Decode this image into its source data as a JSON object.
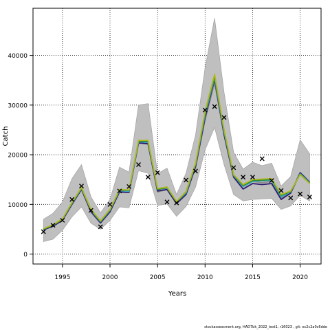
{
  "chart_data": {
    "type": "line",
    "title": "",
    "xlabel": "Years",
    "ylabel": "Catch",
    "xlim": [
      1991.9,
      2022.2
    ],
    "ylim": [
      -2000,
      49500
    ],
    "xticks": [
      1995,
      2000,
      2005,
      2010,
      2015,
      2020
    ],
    "yticks": [
      0,
      10000,
      20000,
      30000,
      40000
    ],
    "grid": true,
    "x": [
      1993,
      1994,
      1995,
      1996,
      1997,
      1998,
      1999,
      2000,
      2001,
      2002,
      2003,
      2004,
      2005,
      2006,
      2007,
      2008,
      2009,
      2010,
      2011,
      2012,
      2013,
      2014,
      2015,
      2016,
      2017,
      2018,
      2019,
      2020,
      2021
    ],
    "band": {
      "lower": [
        2500,
        3000,
        4800,
        7500,
        9500,
        6200,
        5000,
        6800,
        9500,
        9300,
        16800,
        16300,
        9800,
        10100,
        7600,
        9600,
        13500,
        21000,
        25500,
        18000,
        12000,
        10700,
        11000,
        11100,
        11200,
        9000,
        9700,
        11800,
        10700
      ],
      "upper": [
        7000,
        8200,
        10500,
        15200,
        18000,
        11500,
        8300,
        11000,
        17500,
        16500,
        30000,
        30300,
        16200,
        17300,
        12000,
        16300,
        24000,
        37500,
        47500,
        32500,
        20500,
        17100,
        18500,
        17800,
        18300,
        13700,
        15600,
        23000,
        20200
      ]
    },
    "observed": {
      "x": [
        1993,
        1994,
        1995,
        1996,
        1997,
        1998,
        1999,
        2000,
        2001,
        2002,
        2003,
        2004,
        2005,
        2006,
        2007,
        2008,
        2009,
        2010,
        2011,
        2012,
        2013,
        2014,
        2015,
        2016,
        2017,
        2018,
        2019,
        2020,
        2021
      ],
      "y": [
        4500,
        5800,
        6800,
        11000,
        13700,
        8800,
        5500,
        10000,
        12700,
        13600,
        18000,
        15500,
        16400,
        10500,
        10300,
        14900,
        16700,
        29000,
        29700,
        27500,
        17400,
        15500,
        15500,
        19200,
        14800,
        12800,
        11300,
        12100,
        11500
      ]
    },
    "series": [
      {
        "color": "#8c8c8c",
        "values": [
          4900,
          5700,
          7000,
          10200,
          13100,
          8500,
          6200,
          8500,
          12700,
          12500,
          22300,
          22300,
          12500,
          13000,
          10100,
          12000,
          17500,
          27000,
          34500,
          24000,
          15800,
          13800,
          14600,
          14400,
          14600,
          11300,
          12200,
          16200,
          14400
        ]
      },
      {
        "color": "#2d1b6e",
        "values": [
          4900,
          5600,
          6800,
          10000,
          13000,
          8500,
          6300,
          8500,
          12500,
          12400,
          22400,
          22200,
          12700,
          13000,
          10200,
          12000,
          17600,
          27500,
          35200,
          24000,
          15500,
          13100,
          14200,
          14000,
          14200,
          11000,
          12300,
          16400,
          14500
        ]
      },
      {
        "color": "#38a8c9",
        "values": [
          5000,
          5800,
          7000,
          10200,
          13200,
          8800,
          6500,
          8800,
          12800,
          12600,
          22600,
          22500,
          13000,
          13300,
          10500,
          12300,
          18000,
          28000,
          35500,
          24500,
          15800,
          13600,
          14600,
          14800,
          14800,
          11500,
          12500,
          16200,
          14400
        ]
      },
      {
        "color": "#2f8c2f",
        "values": [
          5000,
          5800,
          7000,
          10300,
          13300,
          8900,
          6600,
          8900,
          12900,
          12800,
          22700,
          22700,
          13000,
          13400,
          10500,
          12500,
          18100,
          28400,
          35800,
          24800,
          15900,
          13800,
          14800,
          14900,
          15000,
          11800,
          12600,
          16100,
          14300
        ]
      },
      {
        "color": "#b0b820",
        "values": [
          5100,
          5900,
          7100,
          10400,
          13400,
          9000,
          6700,
          9000,
          13000,
          12900,
          22900,
          22900,
          13200,
          13500,
          10600,
          12600,
          18300,
          28700,
          36200,
          25000,
          16000,
          14000,
          15000,
          15100,
          15200,
          12000,
          12700,
          16000,
          14200
        ]
      }
    ]
  },
  "footer_text": "stockassessment.org, HAD7bk_2022_test1, r16023 , git: ec2c2a0c6dde"
}
